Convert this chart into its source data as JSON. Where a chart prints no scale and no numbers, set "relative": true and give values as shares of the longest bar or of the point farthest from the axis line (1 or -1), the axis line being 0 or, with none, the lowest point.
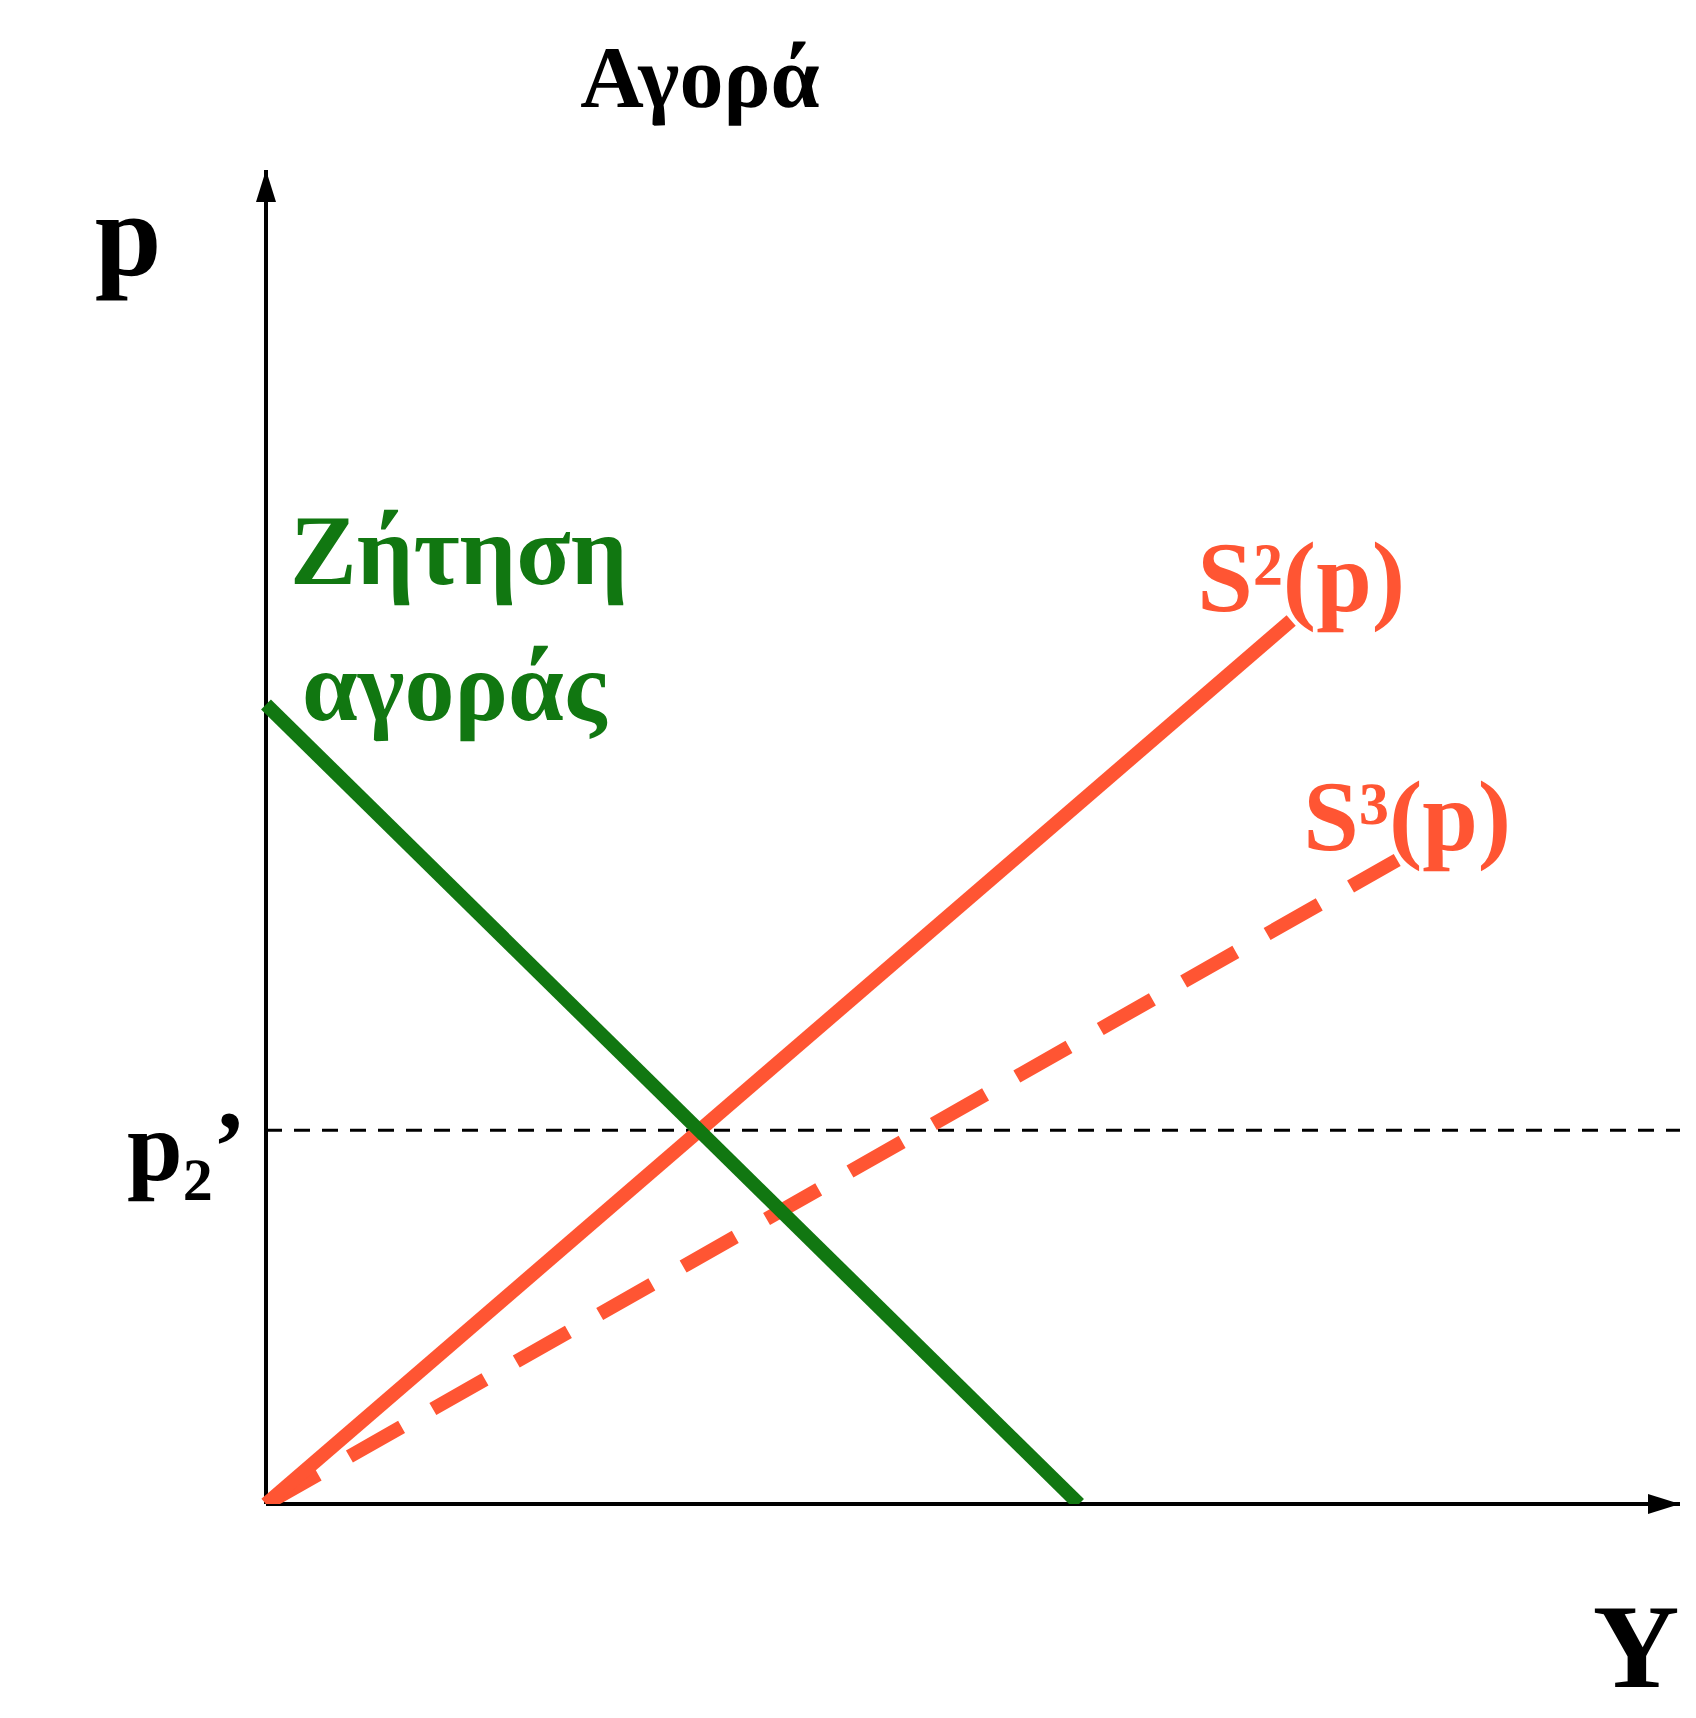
{
  "chart_data": {
    "type": "line",
    "title": "Αγορά",
    "xlabel": "Y",
    "ylabel": "p",
    "relative": true,
    "tick_labels": false,
    "legend": false,
    "marker": "none",
    "categories": [
      null,
      null,
      null,
      null,
      null,
      null,
      null,
      null,
      null,
      null,
      null,
      null,
      null,
      null,
      null,
      null,
      null,
      null,
      null,
      null,
      null,
      null,
      null,
      null,
      null,
      null,
      null,
      null,
      null,
      null,
      null,
      null,
      null,
      null,
      null,
      null,
      null,
      null,
      null,
      null,
      null
    ],
    "series": [
      {
        "name": "Ζήτηση αγοράς",
        "color": "#117711",
        "values": [
          0.905,
          null,
          null,
          null,
          null,
          null,
          null,
          null,
          null,
          null,
          null,
          null,
          null,
          null,
          null,
          null,
          null,
          null,
          null,
          null,
          null,
          null,
          null,
          0,
          null,
          null,
          null,
          null,
          null,
          null,
          null,
          null,
          null,
          null,
          null,
          null,
          null,
          null,
          null,
          null,
          null
        ]
      },
      {
        "name": "S²(p)",
        "color": "#ff5533",
        "values": [
          0,
          null,
          null,
          null,
          null,
          null,
          null,
          null,
          null,
          null,
          null,
          null,
          null,
          null,
          null,
          null,
          null,
          null,
          null,
          null,
          null,
          null,
          null,
          null,
          null,
          null,
          null,
          null,
          null,
          1,
          null,
          null,
          null,
          null,
          null,
          null,
          null,
          null,
          null,
          null,
          null
        ]
      },
      {
        "name": "S³(p)",
        "color": "#ff5533",
        "values": [
          0,
          null,
          null,
          null,
          null,
          null,
          null,
          null,
          null,
          null,
          null,
          null,
          null,
          null,
          null,
          null,
          null,
          null,
          null,
          null,
          null,
          null,
          null,
          null,
          null,
          null,
          null,
          null,
          null,
          null,
          null,
          null,
          0.729,
          null,
          null,
          null,
          null,
          null,
          null,
          null,
          null
        ],
        "line_style": "dashed"
      }
    ],
    "ref_lines": [
      {
        "axis": "y",
        "value": 0.423,
        "label": "p₂’",
        "color": "#000000",
        "line_style": "dashed"
      }
    ]
  }
}
